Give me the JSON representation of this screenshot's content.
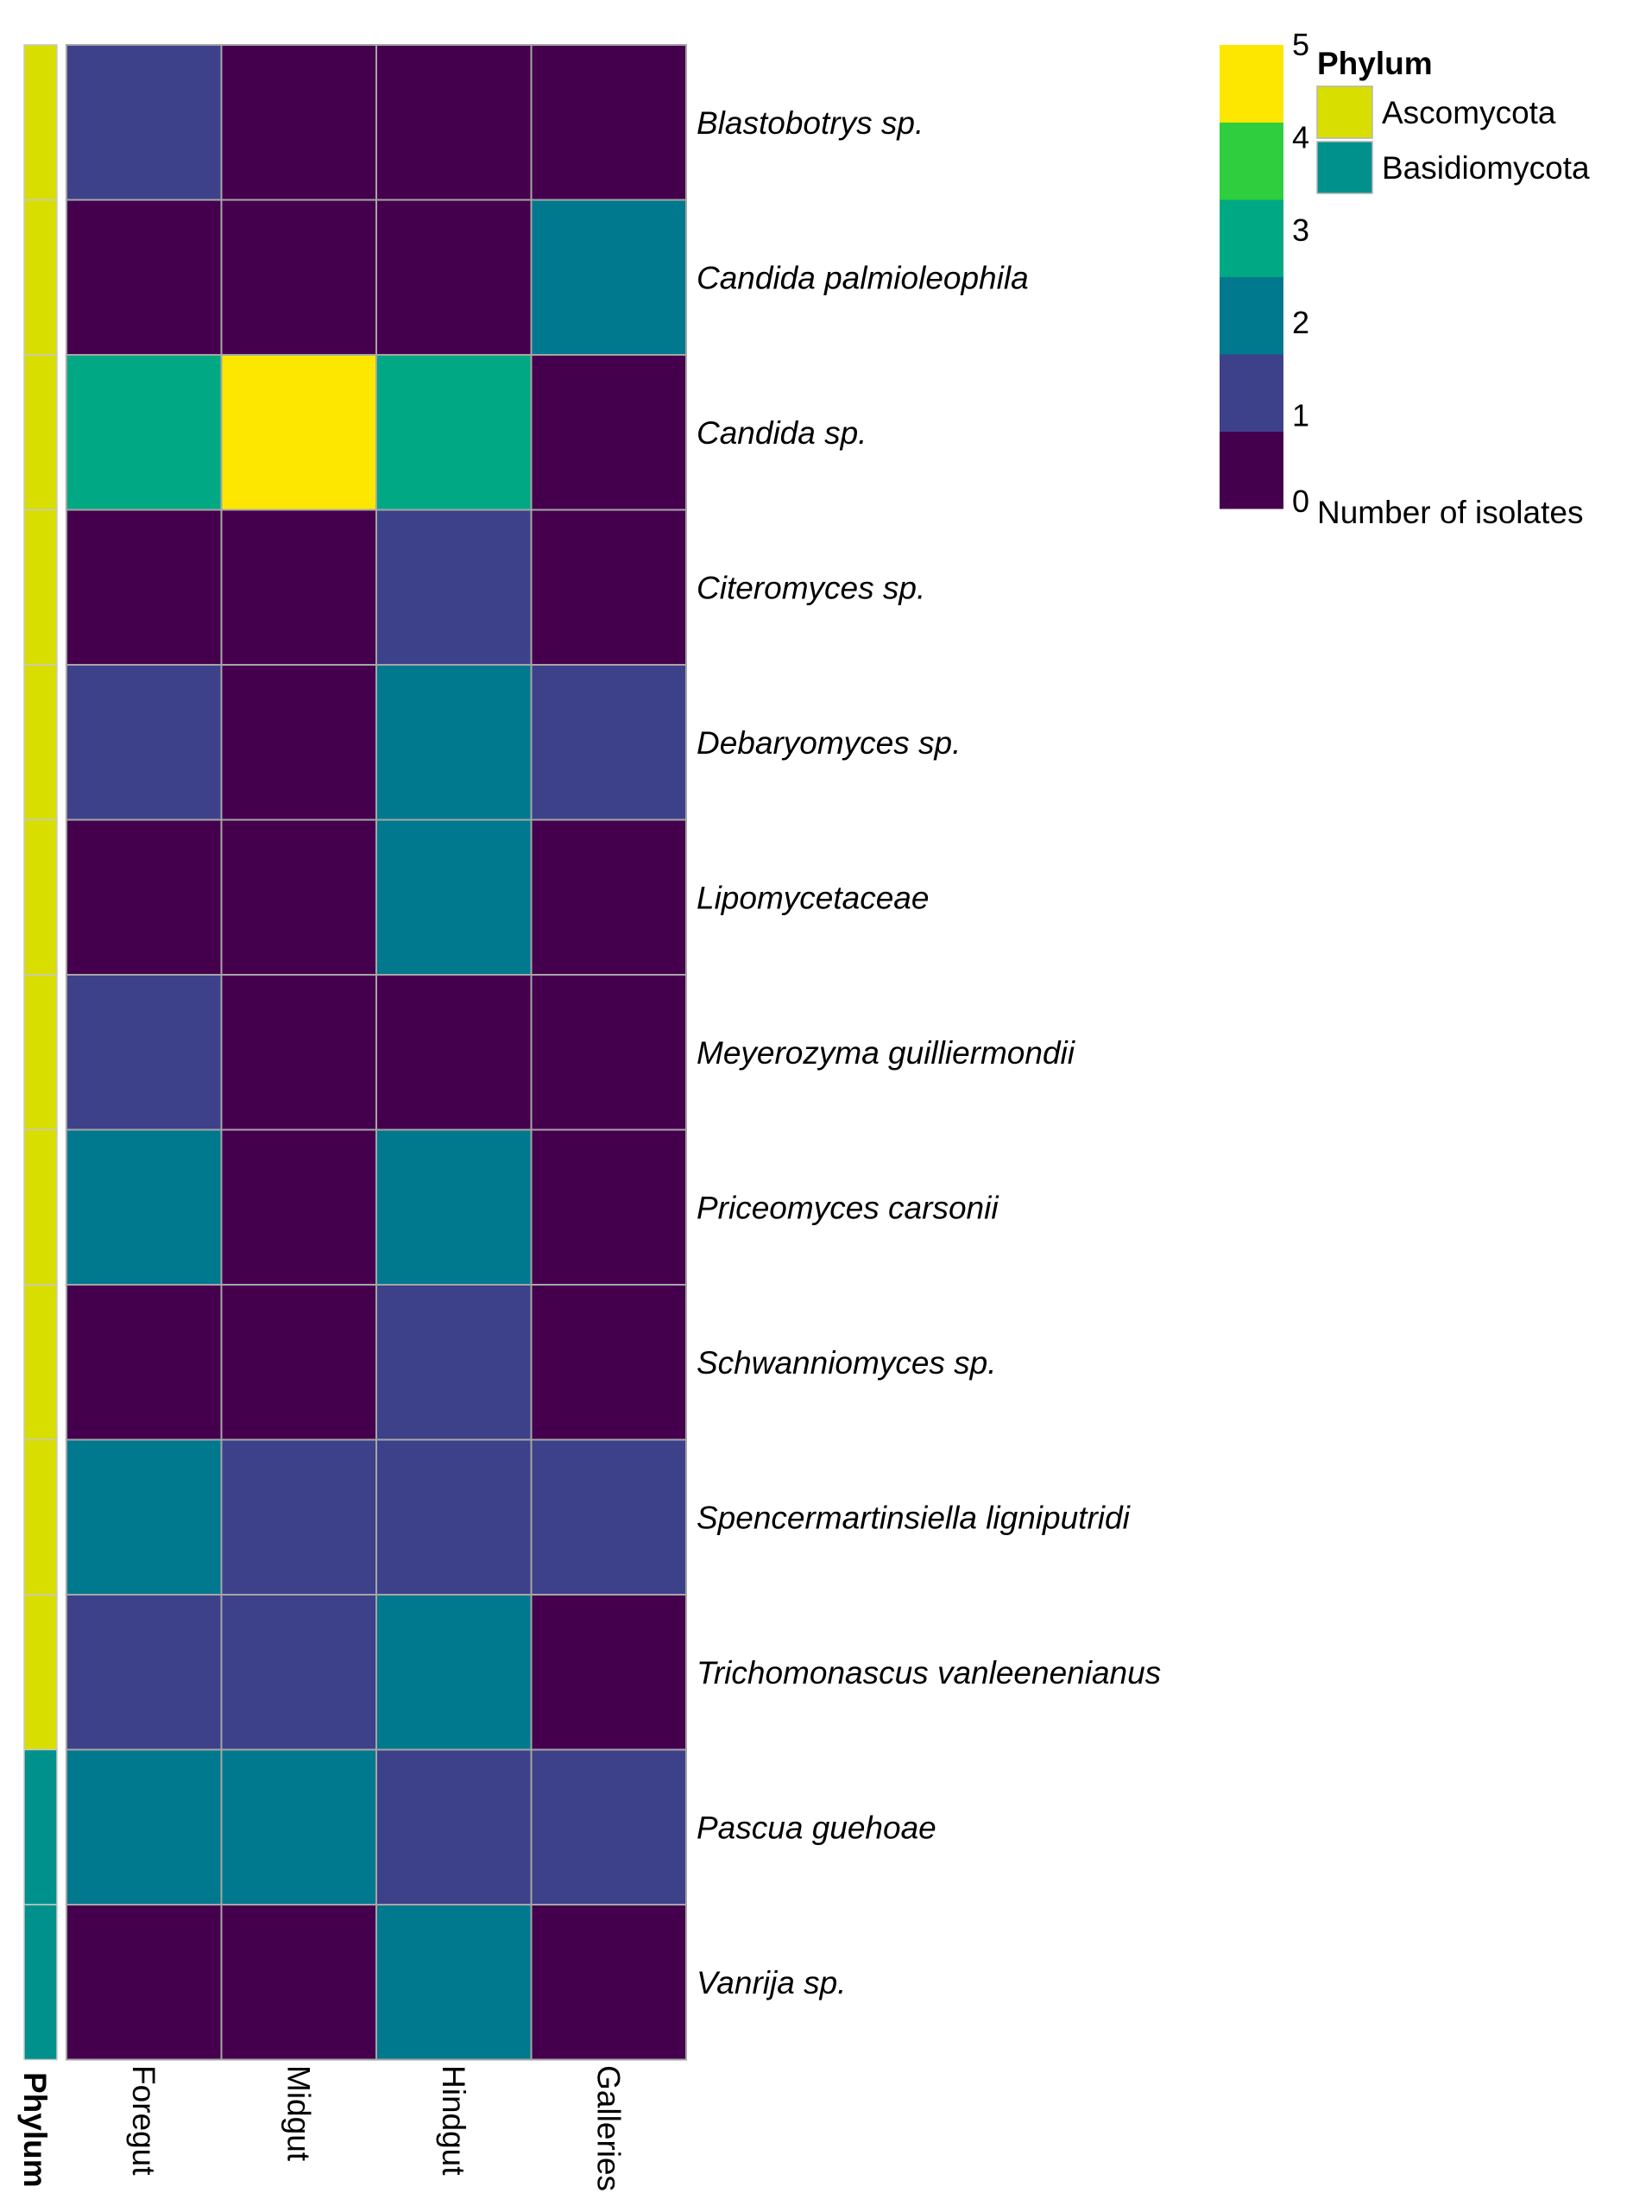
{
  "chart_data": {
    "type": "heatmap",
    "title": "",
    "rows": [
      "Blastobotrys sp.",
      "Candida palmioleophila",
      "Candida sp.",
      "Citeromyces sp.",
      "Debaryomyces sp.",
      "Lipomycetaceae",
      "Meyerozyma  guilliermondii",
      "Priceomyces carsonii",
      "Schwanniomyces sp.",
      "Spencermartinsiella ligniputridi",
      "Trichomonascus vanleenenianus",
      "Pascua guehoae",
      "Vanrija sp."
    ],
    "columns": [
      "Foregut",
      "Midgut",
      "Hindgut",
      "Galleries"
    ],
    "values": [
      [
        1,
        0,
        0,
        0
      ],
      [
        0,
        0,
        0,
        2
      ],
      [
        3,
        5,
        3,
        0
      ],
      [
        0,
        0,
        1,
        0
      ],
      [
        1,
        0,
        2,
        1
      ],
      [
        0,
        0,
        2,
        0
      ],
      [
        1,
        0,
        0,
        0
      ],
      [
        2,
        0,
        2,
        0
      ],
      [
        0,
        0,
        1,
        0
      ],
      [
        2,
        1,
        1,
        1
      ],
      [
        1,
        1,
        2,
        0
      ],
      [
        2,
        2,
        1,
        1
      ],
      [
        0,
        0,
        2,
        0
      ]
    ],
    "row_phylum": [
      "Ascomycota",
      "Ascomycota",
      "Ascomycota",
      "Ascomycota",
      "Ascomycota",
      "Ascomycota",
      "Ascomycota",
      "Ascomycota",
      "Ascomycota",
      "Ascomycota",
      "Ascomycota",
      "Basidiomycota",
      "Basidiomycota"
    ],
    "annotation_label": "Phylum",
    "phylum_legend": {
      "title": "Phylum",
      "entries": [
        {
          "name": "Ascomycota",
          "color": "#d8df00"
        },
        {
          "name": "Basidiomycota",
          "color": "#00918c"
        }
      ]
    },
    "color_scale": {
      "title": "Number of isolates",
      "ticks": [
        5,
        4,
        3,
        2,
        1,
        0
      ],
      "value_range": [
        0,
        5
      ],
      "colors": {
        "0": "#45004d",
        "1": "#3d418a",
        "2": "#00788d",
        "3": "#00a983",
        "4": "#2ece3e",
        "5": "#fde600"
      }
    }
  }
}
